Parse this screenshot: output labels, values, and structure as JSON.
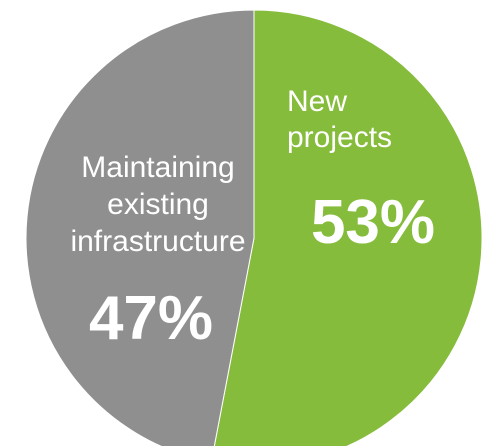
{
  "chart_data": {
    "type": "pie",
    "title": "",
    "slices": [
      {
        "label_lines": [
          "New",
          "projects"
        ],
        "value": 53,
        "percent_label": "53%",
        "color": "#86bc3b"
      },
      {
        "label_lines": [
          "Maintaining",
          "existing",
          "infrastructure"
        ],
        "value": 47,
        "percent_label": "47%",
        "color": "#8f8f8f"
      }
    ],
    "label_color": "#ffffff",
    "start_angle_degrees": 0,
    "direction": "clockwise",
    "legend": "none"
  }
}
